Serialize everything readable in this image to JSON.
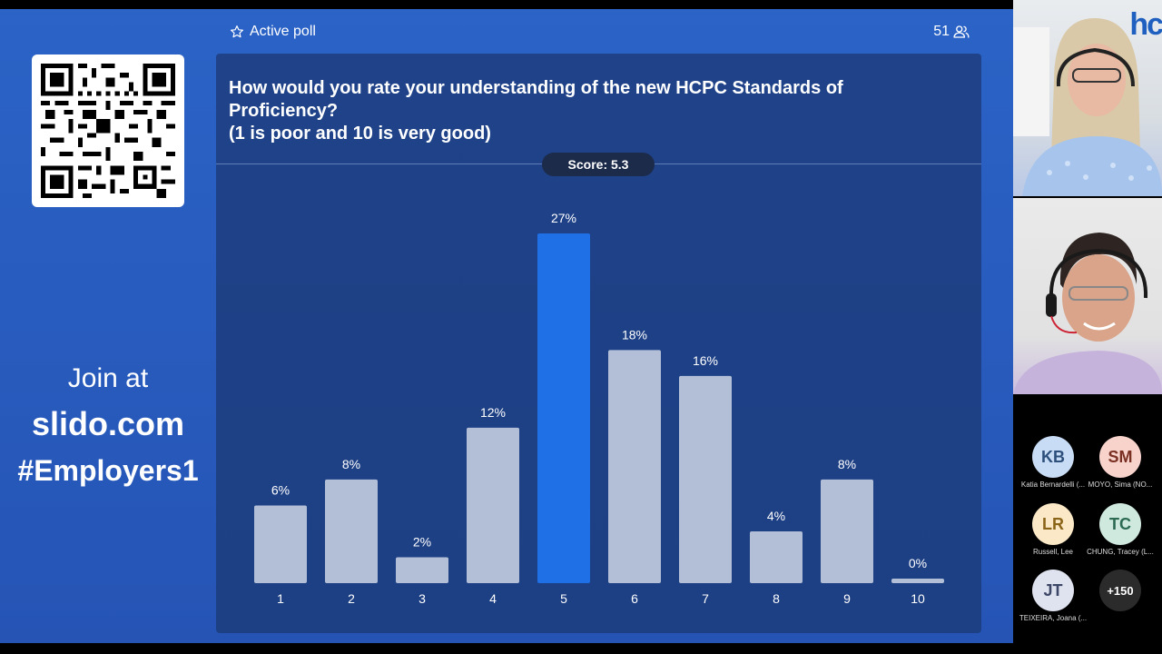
{
  "status": {
    "label": "Active poll",
    "participants": "51"
  },
  "join": {
    "line1": "Join at",
    "line2": "slido.com",
    "line3": "#Employers1"
  },
  "poll": {
    "question_lines": [
      "How would you rate your understanding of the new HCPC Standards of",
      "Proficiency?",
      "(1 is poor and 10 is very good)"
    ],
    "score": "Score: 5.3"
  },
  "chart_data": {
    "type": "bar",
    "categories": [
      "1",
      "2",
      "3",
      "4",
      "5",
      "6",
      "7",
      "8",
      "9",
      "10"
    ],
    "values": [
      6,
      8,
      2,
      12,
      27,
      18,
      16,
      4,
      8,
      0
    ],
    "data_labels": [
      "6%",
      "8%",
      "2%",
      "12%",
      "27%",
      "18%",
      "16%",
      "4%",
      "8%",
      "0%"
    ],
    "highlight_index": 4,
    "colors": {
      "bar": "#b3bfd6",
      "highlight": "#1f6fe6",
      "label": "#ffffff"
    },
    "title": "",
    "xlabel": "",
    "ylabel": "",
    "ylim": [
      0,
      27
    ],
    "grid": false
  },
  "video": {
    "logo_text": "hc"
  },
  "participants": [
    {
      "initials": "KB",
      "name": "Katia Bernardelli (...",
      "bg": "#c8dcf5",
      "fg": "#2d4f7c"
    },
    {
      "initials": "SM",
      "name": "MOYO, Sima (NO...",
      "bg": "#f7d3cc",
      "fg": "#7a3023"
    },
    {
      "initials": "LR",
      "name": "Russell, Lee",
      "bg": "#fbe8c6",
      "fg": "#8a6418"
    },
    {
      "initials": "TC",
      "name": "CHUNG, Tracey (L...",
      "bg": "#cfe9df",
      "fg": "#2c6a52"
    },
    {
      "initials": "JT",
      "name": "TEIXEIRA, Joana (...",
      "bg": "#dfe3f0",
      "fg": "#3c4666"
    },
    {
      "initials": "+150",
      "name": "",
      "bg": "#2b2b2b",
      "fg": "#ffffff"
    }
  ]
}
